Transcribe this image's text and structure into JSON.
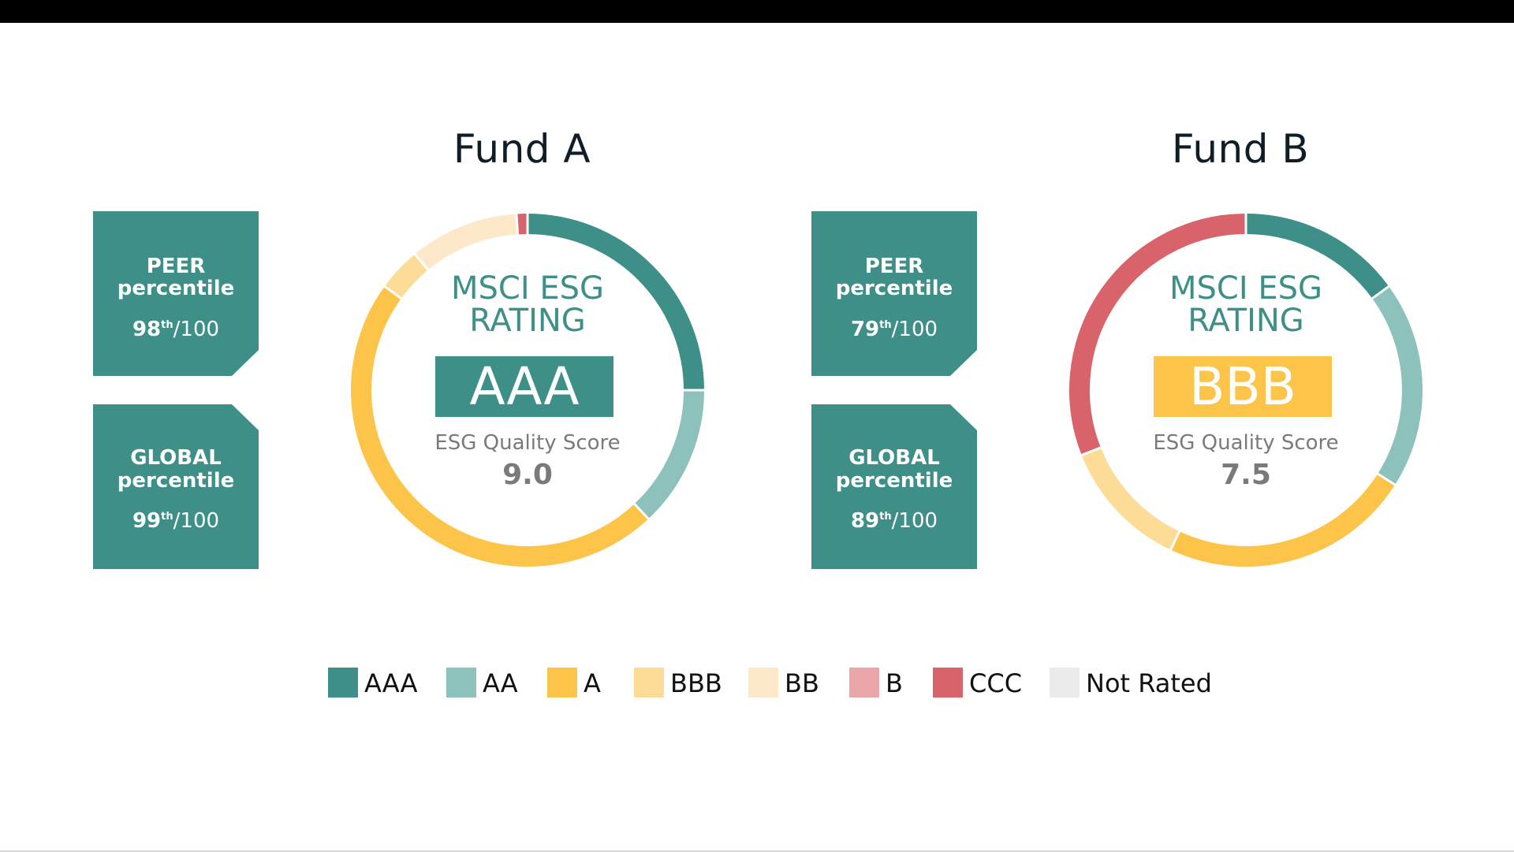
{
  "colors": {
    "AAA": "#3d8f88",
    "AA": "#8dc1bb",
    "A": "#fcc54a",
    "BBB": "#fddc98",
    "BB": "#fde8c9",
    "B": "#eaa6a8",
    "CCC": "#d9636a",
    "Not Rated": "#ebebeb"
  },
  "funds": [
    {
      "title": "Fund A",
      "peer": {
        "line1": "PEER",
        "line2": "percentile",
        "rank": "98",
        "suffix": "th",
        "out_of": "/100"
      },
      "global": {
        "line1": "GLOBAL",
        "line2": "percentile",
        "rank": "99",
        "suffix": "th",
        "out_of": "/100"
      },
      "heading1": "MSCI ESG",
      "heading2": "RATING",
      "rating": "AAA",
      "rating_color": "#3d8f88",
      "score_label": "ESG Quality Score",
      "score": "9.0"
    },
    {
      "title": "Fund B",
      "peer": {
        "line1": "PEER",
        "line2": "percentile",
        "rank": "79",
        "suffix": "th",
        "out_of": "/100"
      },
      "global": {
        "line1": "GLOBAL",
        "line2": "percentile",
        "rank": "89",
        "suffix": "th",
        "out_of": "/100"
      },
      "heading1": "MSCI ESG",
      "heading2": "RATING",
      "rating": "BBB",
      "rating_color": "#fcc54a",
      "score_label": "ESG Quality Score",
      "score": "7.5"
    }
  ],
  "chart_data": [
    {
      "type": "pie",
      "title": "Fund A",
      "categories": [
        "AAA",
        "AA",
        "A",
        "BBB",
        "BB",
        "B",
        "CCC",
        "Not Rated"
      ],
      "values": [
        25,
        13,
        47,
        4,
        10,
        0,
        1,
        0
      ]
    },
    {
      "type": "pie",
      "title": "Fund B",
      "categories": [
        "AAA",
        "AA",
        "A",
        "BBB",
        "BB",
        "B",
        "CCC",
        "Not Rated"
      ],
      "values": [
        15,
        19,
        23,
        12,
        0,
        0,
        31,
        0
      ]
    }
  ],
  "legend": {
    "items": [
      "AAA",
      "AA",
      "A",
      "BBB",
      "BB",
      "B",
      "CCC",
      "Not Rated"
    ]
  }
}
